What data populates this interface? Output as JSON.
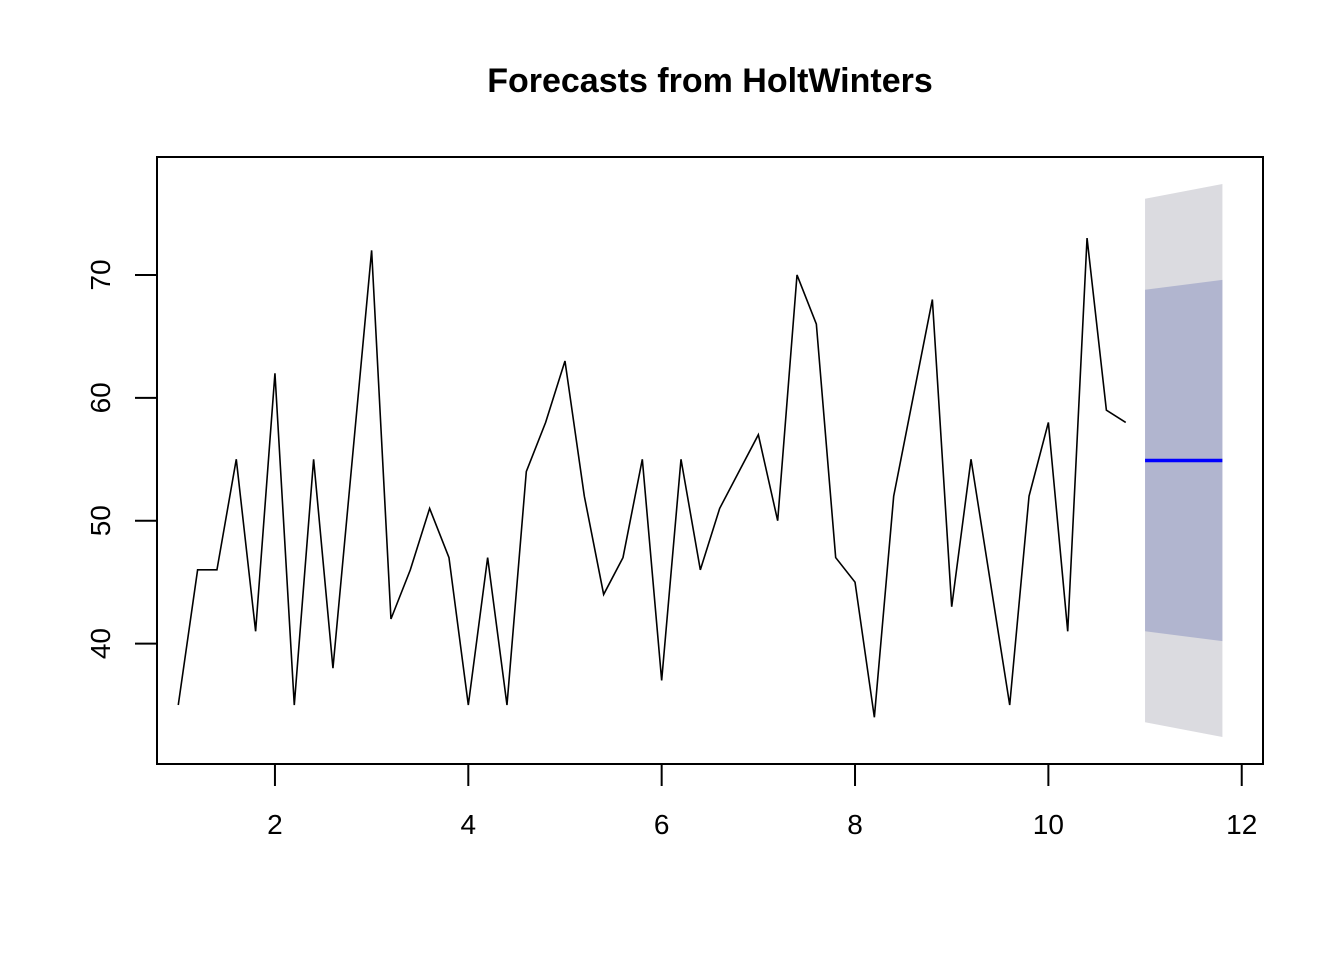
{
  "chart_data": {
    "type": "line",
    "title": "Forecasts from HoltWinters",
    "xlabel": "",
    "ylabel": "",
    "xlim": [
      0.78,
      12.22
    ],
    "ylim": [
      30.2,
      79.6
    ],
    "x_ticks": [
      2,
      4,
      6,
      8,
      10,
      12
    ],
    "y_ticks": [
      40,
      50,
      60,
      70
    ],
    "grid": false,
    "legend": "none",
    "series": [
      {
        "role": "observed",
        "color": "#000000",
        "x": [
          1.0,
          1.2,
          1.4,
          1.6,
          1.8,
          2.0,
          2.2,
          2.4,
          2.6,
          2.8,
          3.0,
          3.2,
          3.4,
          3.6,
          3.8,
          4.0,
          4.2,
          4.4,
          4.6,
          4.8,
          5.0,
          5.2,
          5.4,
          5.6,
          5.8,
          6.0,
          6.2,
          6.4,
          6.6,
          6.8,
          7.0,
          7.2,
          7.4,
          7.6,
          7.8,
          8.0,
          8.2,
          8.4,
          8.6,
          8.8,
          9.0,
          9.2,
          9.4,
          9.6,
          9.8,
          10.0,
          10.2,
          10.4,
          10.6,
          10.8
        ],
        "y": [
          35,
          46,
          46,
          55,
          41,
          62,
          35,
          55,
          38,
          55,
          72,
          42,
          46,
          51,
          47,
          35,
          47,
          35,
          54,
          58,
          63,
          52,
          44,
          47,
          55,
          37,
          55,
          46,
          51,
          54,
          57,
          50,
          70,
          66,
          47,
          45,
          34,
          52,
          60,
          68,
          43,
          55,
          45,
          35,
          52,
          58,
          41,
          73,
          59,
          58
        ]
      },
      {
        "role": "point-forecast",
        "color": "#0000FF",
        "x": [
          11.0,
          11.8
        ],
        "y": [
          54.9,
          54.9
        ]
      }
    ],
    "bands": [
      {
        "level": "95%",
        "color": "#DBDBE0",
        "x": [
          11.0,
          11.8
        ],
        "lower": [
          33.6,
          32.4
        ],
        "upper": [
          76.2,
          77.4
        ]
      },
      {
        "level": "80%",
        "color": "#B1B5CF",
        "x": [
          11.0,
          11.8
        ],
        "lower": [
          41.0,
          40.2
        ],
        "upper": [
          68.8,
          69.6
        ]
      }
    ]
  }
}
